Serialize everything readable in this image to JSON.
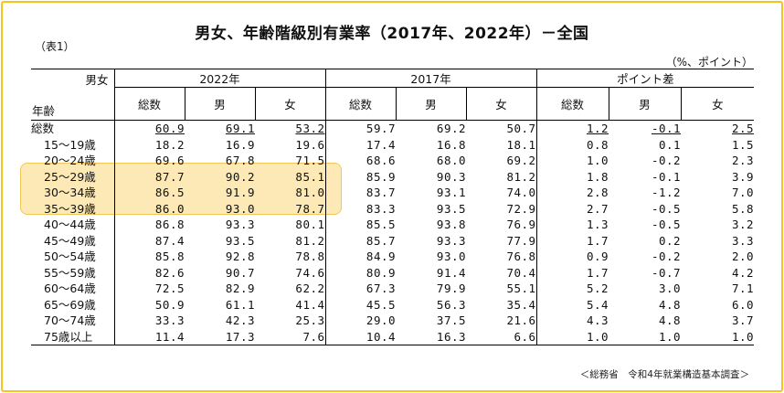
{
  "title": "男女、年齢階級別有業率（2017年、2022年）－全国",
  "table_id": "（表1）",
  "units": "（%、ポイント）",
  "source": "＜総務省　令和4年就業構造基本調査＞",
  "header": {
    "corner_top": "男女",
    "corner_bottom": "年齢",
    "groups": [
      "2022年",
      "2017年",
      "ポイント差"
    ],
    "subcolumns": [
      "総数",
      "男",
      "女"
    ]
  },
  "colors": {
    "frame": "#f5c518",
    "highlight": "#fad778"
  },
  "rows": [
    {
      "label": "総数",
      "v": [
        "60.9",
        "69.1",
        "53.2",
        "59.7",
        "69.2",
        "50.7",
        "1.2",
        "-0.1",
        "2.5"
      ]
    },
    {
      "label": "15～19歳",
      "v": [
        "18.2",
        "16.9",
        "19.6",
        "17.4",
        "16.8",
        "18.1",
        "0.8",
        "0.1",
        "1.5"
      ]
    },
    {
      "label": "20～24歳",
      "v": [
        "69.6",
        "67.8",
        "71.5",
        "68.6",
        "68.0",
        "69.2",
        "1.0",
        "-0.2",
        "2.3"
      ]
    },
    {
      "label": "25～29歳",
      "v": [
        "87.7",
        "90.2",
        "85.1",
        "85.9",
        "90.3",
        "81.2",
        "1.8",
        "-0.1",
        "3.9"
      ]
    },
    {
      "label": "30～34歳",
      "v": [
        "86.5",
        "91.9",
        "81.0",
        "83.7",
        "93.1",
        "74.0",
        "2.8",
        "-1.2",
        "7.0"
      ]
    },
    {
      "label": "35～39歳",
      "v": [
        "86.0",
        "93.0",
        "78.7",
        "83.3",
        "93.5",
        "72.9",
        "2.7",
        "-0.5",
        "5.8"
      ]
    },
    {
      "label": "40～44歳",
      "v": [
        "86.8",
        "93.3",
        "80.1",
        "85.5",
        "93.8",
        "76.9",
        "1.3",
        "-0.5",
        "3.2"
      ]
    },
    {
      "label": "45～49歳",
      "v": [
        "87.4",
        "93.5",
        "81.2",
        "85.7",
        "93.3",
        "77.9",
        "1.7",
        "0.2",
        "3.3"
      ]
    },
    {
      "label": "50～54歳",
      "v": [
        "85.8",
        "92.8",
        "78.8",
        "84.9",
        "93.0",
        "76.8",
        "0.9",
        "-0.2",
        "2.0"
      ]
    },
    {
      "label": "55～59歳",
      "v": [
        "82.6",
        "90.7",
        "74.6",
        "80.9",
        "91.4",
        "70.4",
        "1.7",
        "-0.7",
        "4.2"
      ]
    },
    {
      "label": "60～64歳",
      "v": [
        "72.5",
        "82.9",
        "62.2",
        "67.3",
        "79.9",
        "55.1",
        "5.2",
        "3.0",
        "7.1"
      ]
    },
    {
      "label": "65～69歳",
      "v": [
        "50.9",
        "61.1",
        "41.4",
        "45.5",
        "56.3",
        "35.4",
        "5.4",
        "4.8",
        "6.0"
      ]
    },
    {
      "label": "70～74歳",
      "v": [
        "33.3",
        "42.3",
        "25.3",
        "29.0",
        "37.5",
        "21.6",
        "4.3",
        "4.8",
        "3.7"
      ]
    },
    {
      "label": "75歳以上",
      "v": [
        "11.4",
        "17.3",
        "7.6",
        "10.4",
        "16.3",
        "6.6",
        "1.0",
        "1.0",
        "1.0"
      ]
    }
  ]
}
